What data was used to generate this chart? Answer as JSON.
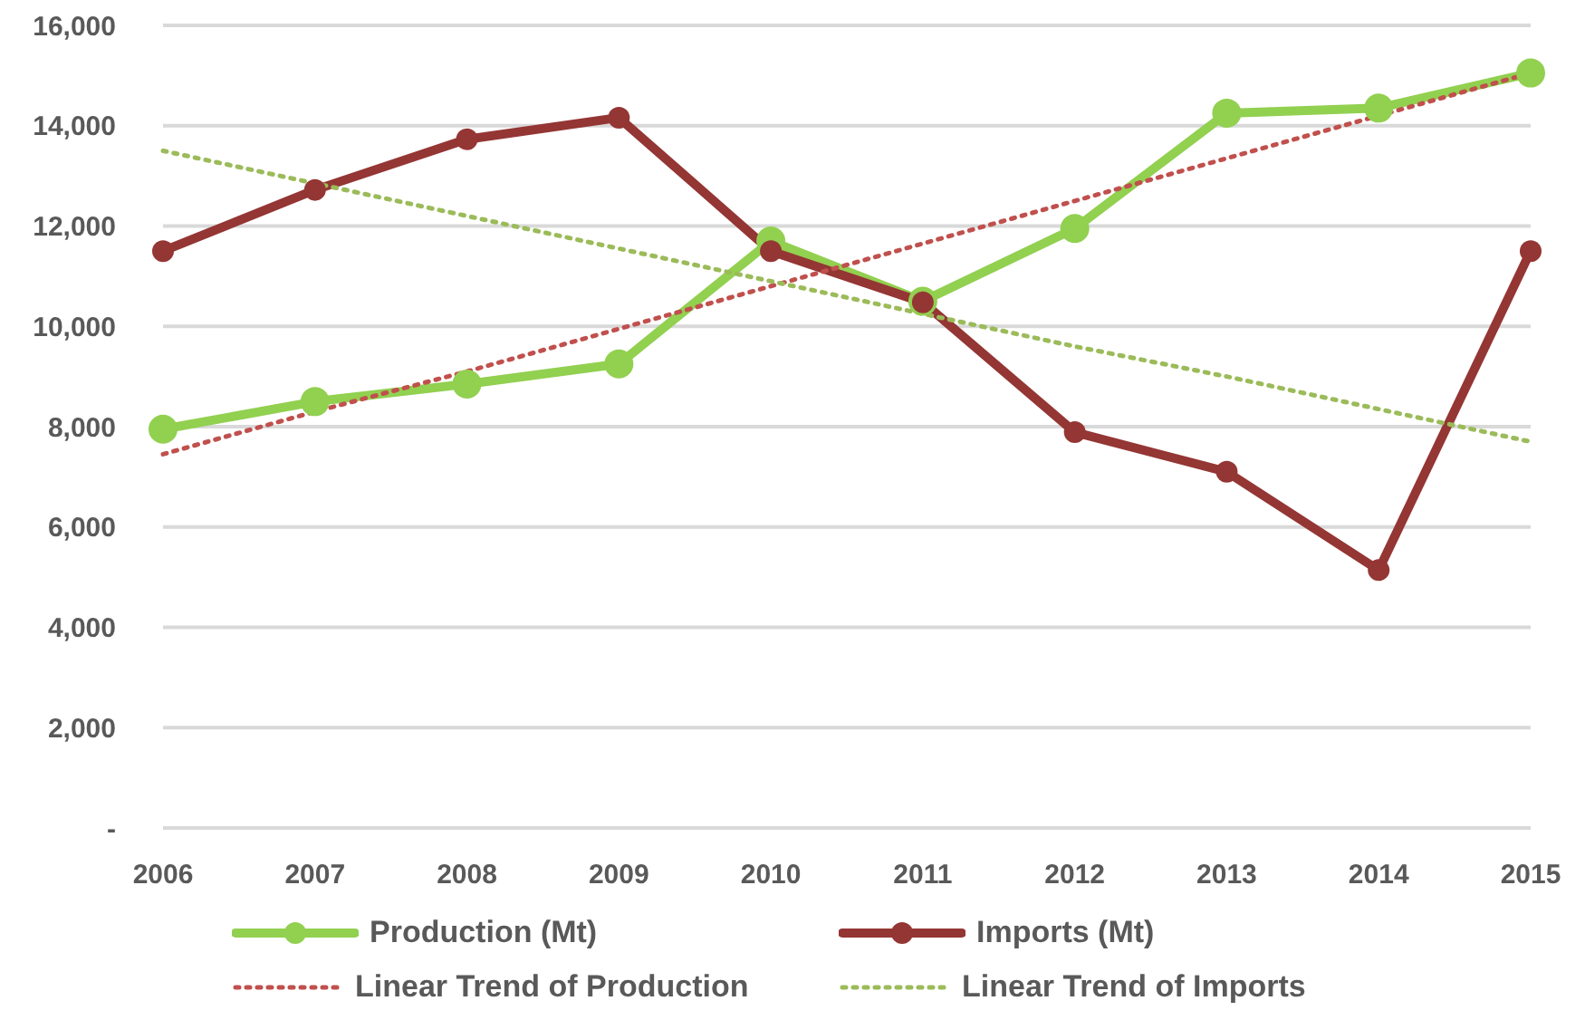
{
  "chart_data": {
    "type": "line",
    "categories": [
      "2006",
      "2007",
      "2008",
      "2009",
      "2010",
      "2011",
      "2012",
      "2013",
      "2014",
      "2015"
    ],
    "series": [
      {
        "name": "Production (Mt)",
        "color": "#92d050",
        "marker": "circle",
        "line_style": "solid",
        "values": [
          7950,
          8500,
          8850,
          9250,
          11700,
          10500,
          11950,
          14250,
          14350,
          15050
        ]
      },
      {
        "name": "Imports (Mt)",
        "color": "#943634",
        "marker": "circle",
        "line_style": "solid",
        "values": [
          11500,
          12720,
          13730,
          14160,
          11500,
          10480,
          7890,
          7100,
          5140,
          11500
        ]
      },
      {
        "name": "Linear Trend of Production",
        "color": "#c0504d",
        "marker": "none",
        "line_style": "dotted",
        "values": [
          7450,
          8300,
          9100,
          9950,
          10800,
          11650,
          12500,
          13350,
          14200,
          15050
        ]
      },
      {
        "name": "Linear Trend of Imports",
        "color": "#9bbb59",
        "marker": "none",
        "line_style": "dotted",
        "values": [
          13500,
          12850,
          12200,
          11550,
          10900,
          10250,
          9600,
          9000,
          8350,
          7700
        ]
      }
    ],
    "ylim": [
      0,
      16000
    ],
    "yticks": [
      {
        "value": 0,
        "label": "-"
      },
      {
        "value": 2000,
        "label": "2,000"
      },
      {
        "value": 4000,
        "label": "4,000"
      },
      {
        "value": 6000,
        "label": "6,000"
      },
      {
        "value": 8000,
        "label": "8,000"
      },
      {
        "value": 10000,
        "label": "10,000"
      },
      {
        "value": 12000,
        "label": "12,000"
      },
      {
        "value": 14000,
        "label": "14,000"
      },
      {
        "value": 16000,
        "label": "16,000"
      }
    ],
    "grid": "y",
    "legend": "bottom"
  }
}
